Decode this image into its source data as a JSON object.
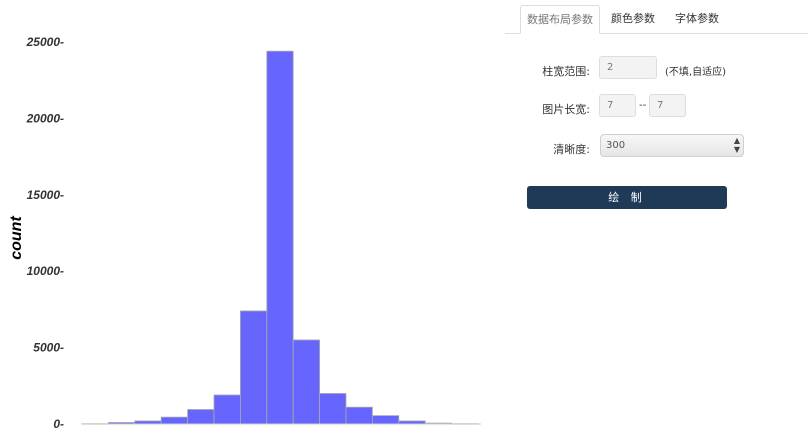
{
  "chart_data": {
    "type": "bar",
    "ylabel": "count",
    "ylim": [
      0,
      25000
    ],
    "yticks": [
      0,
      5000,
      10000,
      15000,
      20000,
      25000
    ],
    "ytick_labels": [
      "0-",
      "5000-",
      "10000-",
      "15000-",
      "20000-",
      "25000-"
    ],
    "bar_color": "#6666ff",
    "values": [
      20,
      100,
      200,
      450,
      950,
      1900,
      7400,
      24400,
      5500,
      2000,
      1100,
      550,
      200,
      60,
      20
    ]
  },
  "panel": {
    "tabs": [
      {
        "label": "数据布局参数"
      },
      {
        "label": "颜色参数"
      },
      {
        "label": "字体参数"
      }
    ],
    "bar_width": {
      "label": "柱宽范围:",
      "value": "2",
      "hint": "(不填,自适应)"
    },
    "image_size": {
      "label": "图片长宽:",
      "width": "7",
      "sep": "--",
      "height": "7"
    },
    "resolution": {
      "label": "清晰度:",
      "value": "300"
    },
    "draw_button": "绘 制"
  }
}
